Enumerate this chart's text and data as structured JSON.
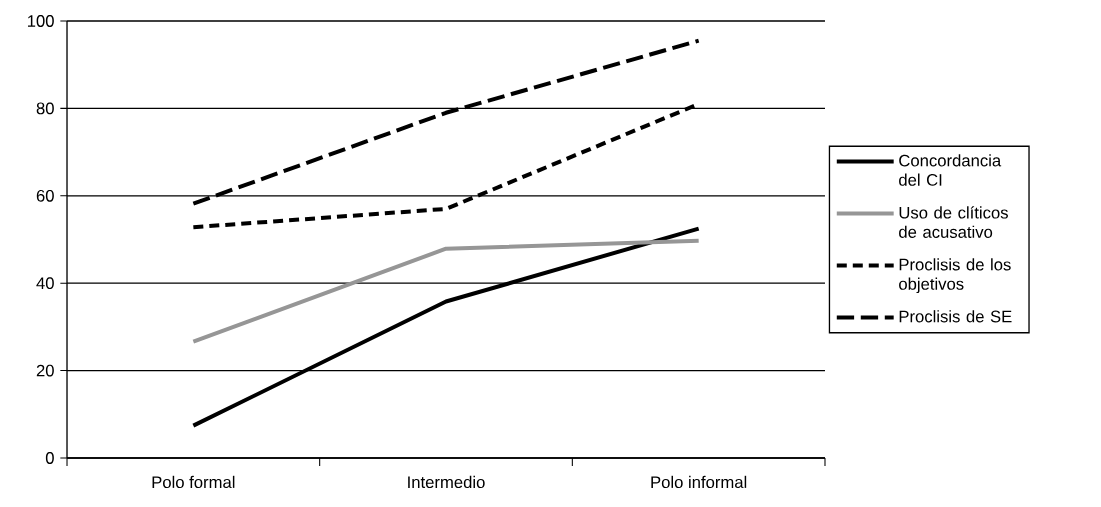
{
  "chart_data": {
    "type": "line",
    "categories": [
      "Polo formal",
      "Intermedio",
      "Polo informal"
    ],
    "series": [
      {
        "name": "Concordancia del CI",
        "color": "#000000",
        "line_style": "solid",
        "values": [
          7.4,
          35.8,
          52.5
        ]
      },
      {
        "name": "Uso de clíticos de acusativo",
        "color": "#969696",
        "line_style": "solid",
        "values": [
          26.6,
          47.9,
          49.7
        ]
      },
      {
        "name": "Proclisis de los objetivos",
        "color": "#000000",
        "line_style": "dotted",
        "values": [
          52.8,
          57,
          81
        ]
      },
      {
        "name": "Proclisis de SE",
        "color": "#000000",
        "line_style": "dashed",
        "values": [
          58.2,
          79,
          95.5
        ]
      }
    ],
    "ylim": [
      0,
      100
    ],
    "yticks": [
      0,
      20,
      40,
      60,
      80,
      100
    ],
    "grid": "y",
    "legend": "right",
    "marker": "none"
  }
}
